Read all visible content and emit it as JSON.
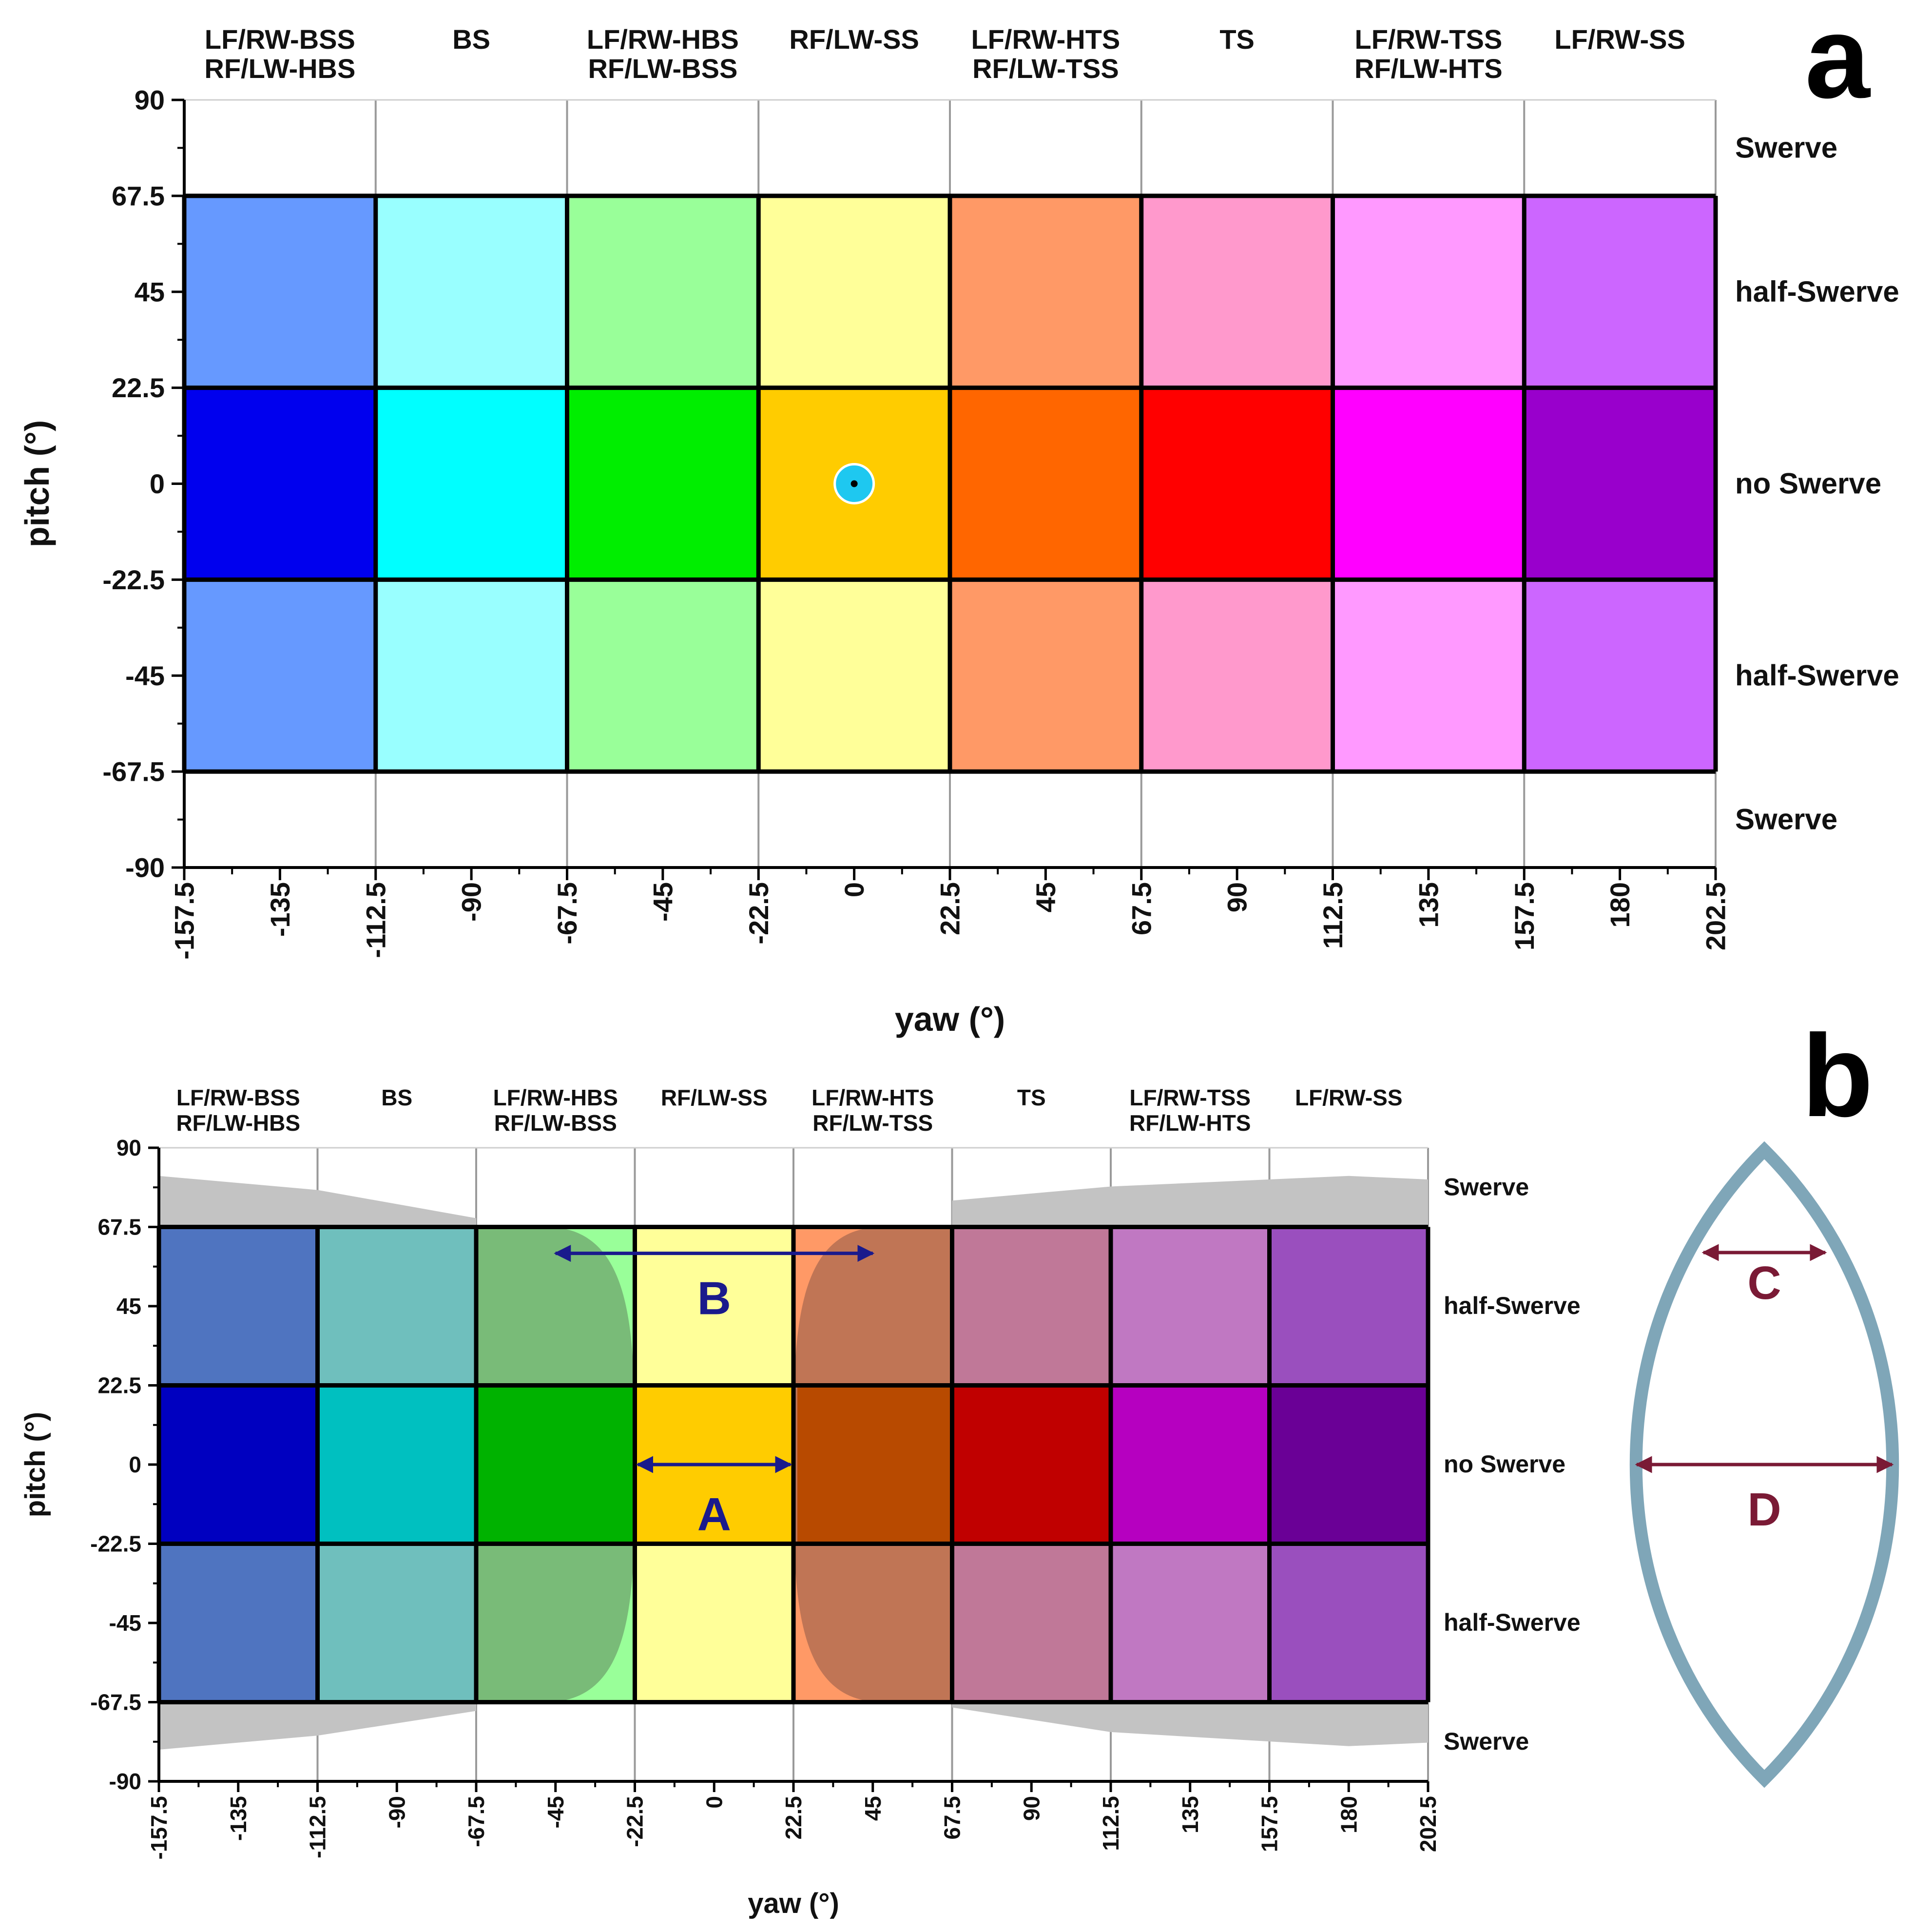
{
  "colors": {
    "panel_a": {
      "outer": [
        "#6699ff",
        "#99ffff",
        "#99ff99",
        "#ffff99",
        "#ff9966",
        "#ff99cc",
        "#ff99ff",
        "#cc66ff"
      ],
      "inner": [
        "#0000ee",
        "#00ffff",
        "#00ee00",
        "#ffcc00",
        "#ff6600",
        "#ff0000",
        "#ff00ff",
        "#9900cc"
      ]
    },
    "panel_b": {
      "outer": [
        "#4f74c0",
        "#6fbfbd",
        "#79bb78",
        "#ffff99",
        "#ff9966",
        "#c07898",
        "#c078c2",
        "#9a4fbe"
      ],
      "inner": [
        "#0000c0",
        "#00c0c0",
        "#00b200",
        "#ffcc00",
        "#b84a00",
        "#c00000",
        "#b600c0",
        "#6a0096"
      ],
      "outer_light": [
        "#4f74c0",
        "#6fbfbd",
        "#99ff99",
        "#ffff99",
        "#ff9966",
        "#c07898",
        "#c078c2",
        "#9a4fbe"
      ],
      "gray": "#c3c3c3",
      "shade_left": "#79bb78",
      "shade_right": "#c07555",
      "arrow_blue": "#1a1a8c",
      "arrow_red": "#7a1a35",
      "lens": "#7fa6b8"
    },
    "marker": "#1ec8f0"
  },
  "chart_data": [
    {
      "id": "a",
      "type": "heatmap",
      "panel_letter": "a",
      "column_labels": [
        [
          "LF/RW-BSS",
          "RF/LW-HBS"
        ],
        [
          "BS"
        ],
        [
          "LF/RW-HBS",
          "RF/LW-BSS"
        ],
        [
          "RF/LW-SS"
        ],
        [
          "LF/RW-HTS",
          "RF/LW-TSS"
        ],
        [
          "TS"
        ],
        [
          "LF/RW-TSS",
          "RF/LW-HTS"
        ],
        [
          "LF/RW-SS"
        ]
      ],
      "row_labels": [
        "Swerve",
        "half-Swerve",
        "no Swerve",
        "half-Swerve",
        "Swerve"
      ],
      "xlabel": "yaw (°)",
      "ylabel": "pitch (°)",
      "xlim": [
        -157.5,
        202.5
      ],
      "ylim": [
        -90,
        90
      ],
      "x_ticks": [
        "-157.5",
        "-135",
        "-112.5",
        "-90",
        "-67.5",
        "-45",
        "-22.5",
        "0",
        "22.5",
        "45",
        "67.5",
        "90",
        "112.5",
        "135",
        "157.5",
        "180",
        "202.5"
      ],
      "y_ticks": [
        "90",
        "67.5",
        "45",
        "22.5",
        "0",
        "-22.5",
        "-45",
        "-67.5",
        "-90"
      ],
      "col_edges": [
        -157.5,
        -112.5,
        -67.5,
        -22.5,
        22.5,
        67.5,
        112.5,
        157.5,
        202.5
      ],
      "row_edges": [
        67.5,
        22.5,
        -22.5,
        -67.5
      ],
      "marker": {
        "x": 0,
        "y": 0
      }
    },
    {
      "id": "b",
      "type": "heatmap",
      "panel_letter": "b",
      "column_labels": [
        [
          "LF/RW-BSS",
          "RF/LW-HBS"
        ],
        [
          "BS"
        ],
        [
          "LF/RW-HBS",
          "RF/LW-BSS"
        ],
        [
          "RF/LW-SS"
        ],
        [
          "LF/RW-HTS",
          "RF/LW-TSS"
        ],
        [
          "TS"
        ],
        [
          "LF/RW-TSS",
          "RF/LW-HTS"
        ],
        [
          "LF/RW-SS"
        ]
      ],
      "row_labels": [
        "Swerve",
        "half-Swerve",
        "no Swerve",
        "half-Swerve",
        "Swerve"
      ],
      "xlabel": "yaw (°)",
      "ylabel": "pitch (°)",
      "xlim": [
        -157.5,
        202.5
      ],
      "ylim": [
        -90,
        90
      ],
      "x_ticks": [
        "-157.5",
        "-135",
        "-112.5",
        "-90",
        "-67.5",
        "-45",
        "-22.5",
        "0",
        "22.5",
        "45",
        "67.5",
        "90",
        "112.5",
        "135",
        "157.5",
        "180",
        "202.5"
      ],
      "y_ticks": [
        "90",
        "67.5",
        "45",
        "22.5",
        "0",
        "-22.5",
        "-45",
        "-67.5",
        "-90"
      ],
      "col_edges": [
        -157.5,
        -112.5,
        -67.5,
        -22.5,
        22.5,
        67.5,
        112.5,
        157.5,
        202.5
      ],
      "row_edges": [
        67.5,
        22.5,
        -22.5,
        -67.5
      ],
      "occluded_region": {
        "left_boundary_top": [
          [
            -157.5,
            82
          ],
          [
            -112.5,
            78
          ],
          [
            -67.5,
            70
          ]
        ],
        "right_boundary_top": [
          [
            67.5,
            75
          ],
          [
            112.5,
            79
          ],
          [
            180,
            82
          ],
          [
            202.5,
            81
          ]
        ],
        "left_boundary_bottom": [
          [
            -157.5,
            -81
          ],
          [
            -112.5,
            -77
          ],
          [
            -67.5,
            -70
          ]
        ],
        "right_boundary_bottom": [
          [
            67.5,
            -69
          ],
          [
            112.5,
            -76
          ],
          [
            180,
            -80
          ],
          [
            202.5,
            -79
          ]
        ],
        "clear_yaw_at_no_swerve": [
          -22.5,
          22.5
        ],
        "clear_yaw_at_half_swerve": [
          -45,
          45
        ]
      },
      "annotations": {
        "A": {
          "label": "A",
          "x_range": [
            -22.5,
            22.5
          ],
          "y": 0
        },
        "B": {
          "label": "B",
          "x_range": [
            -45,
            45
          ],
          "y": 60
        }
      },
      "lens_annotations": {
        "C": "C",
        "D": "D"
      }
    }
  ]
}
